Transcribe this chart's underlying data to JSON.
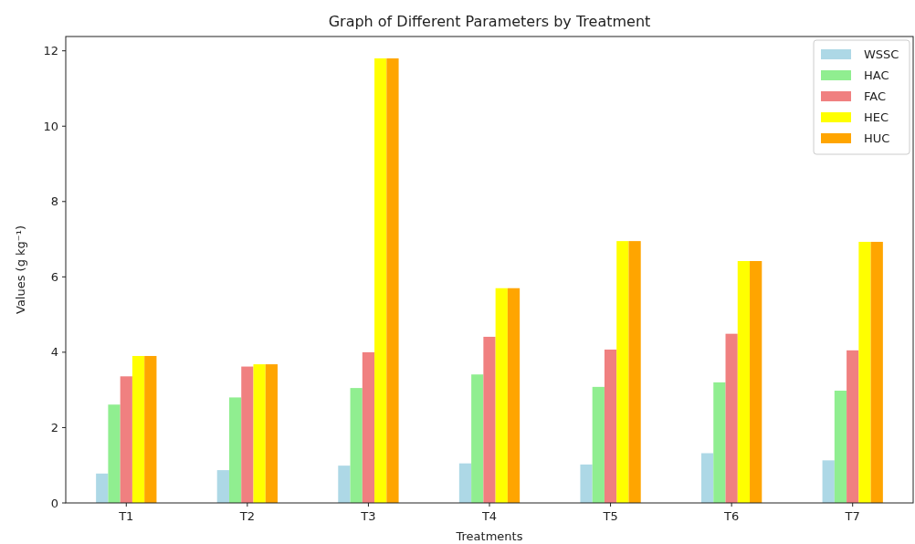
{
  "chart_data": {
    "type": "bar",
    "title": "Graph of Different Parameters by Treatment",
    "xlabel": "Treatments",
    "ylabel": "Values (g kg⁻¹)",
    "categories": [
      "T1",
      "T2",
      "T3",
      "T4",
      "T5",
      "T6",
      "T7"
    ],
    "series": [
      {
        "name": "WSSC",
        "color": "#add8e6",
        "values": [
          0.78,
          0.87,
          0.99,
          1.05,
          1.02,
          1.32,
          1.13
        ]
      },
      {
        "name": "HAC",
        "color": "#90ee90",
        "values": [
          2.61,
          2.8,
          3.05,
          3.41,
          3.08,
          3.2,
          2.98
        ]
      },
      {
        "name": "FAC",
        "color": "#f08080",
        "values": [
          3.36,
          3.62,
          4.0,
          4.41,
          4.07,
          4.49,
          4.05
        ]
      },
      {
        "name": "HEC",
        "color": "#ffff00",
        "values": [
          3.9,
          3.68,
          11.8,
          5.7,
          6.95,
          6.42,
          6.93
        ]
      },
      {
        "name": "HUC",
        "color": "#ffa500",
        "values": [
          3.9,
          3.68,
          11.8,
          5.7,
          6.95,
          6.42,
          6.93
        ]
      }
    ],
    "ylim": [
      0,
      12.38
    ],
    "yticks": [
      0,
      2,
      4,
      6,
      8,
      10,
      12
    ],
    "grid": false,
    "legend": "top right"
  }
}
